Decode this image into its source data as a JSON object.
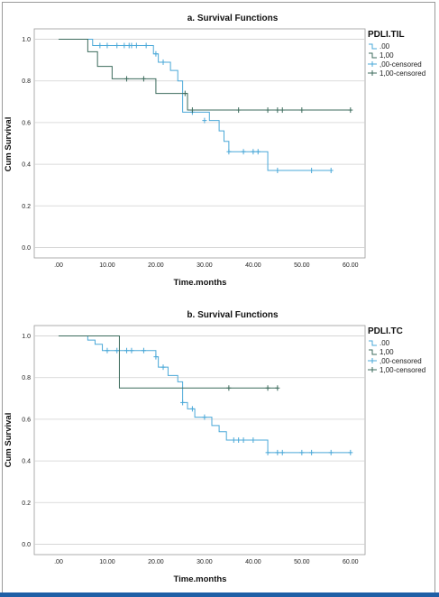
{
  "colors": {
    "group0": "#4aa8d8",
    "group1": "#3c6b5c",
    "grid": "#d0d0d0",
    "frame": "#9a9a9a"
  },
  "chart_data": [
    {
      "type": "line",
      "subtype": "kaplan-meier",
      "title": "a. Survival Functions",
      "xlabel": "Time.months",
      "ylabel": "Cum Survival",
      "xlim": [
        -5,
        63
      ],
      "ylim": [
        -0.05,
        1.05
      ],
      "x_ticks": [
        0,
        10,
        20,
        30,
        40,
        50,
        60
      ],
      "x_tick_labels": [
        ".00",
        "10.00",
        "20.00",
        "30.00",
        "40.00",
        "50.00",
        "60.00"
      ],
      "y_ticks": [
        0,
        0.2,
        0.4,
        0.6,
        0.8,
        1.0
      ],
      "y_tick_labels": [
        "0.0",
        "0.2",
        "0.4",
        "0.6",
        "0.8",
        "1.0"
      ],
      "grid": "horizontal",
      "legend_title": "PDLI.TIL",
      "legend_entries": [
        ".00",
        "1,00",
        ",00-censored",
        "1,00-censored"
      ],
      "series": [
        {
          "name": ".00",
          "color_key": "group0",
          "steps": [
            [
              0,
              1.0
            ],
            [
              7,
              0.97
            ],
            [
              18,
              0.97
            ],
            [
              19.5,
              0.93
            ],
            [
              20.5,
              0.89
            ],
            [
              23,
              0.85
            ],
            [
              24.5,
              0.8
            ],
            [
              25.5,
              0.65
            ],
            [
              29,
              0.65
            ],
            [
              31,
              0.61
            ],
            [
              33,
              0.56
            ],
            [
              34,
              0.51
            ],
            [
              35,
              0.46
            ],
            [
              42.5,
              0.46
            ],
            [
              43,
              0.37
            ],
            [
              56,
              0.37
            ]
          ],
          "censored": [
            [
              8.5,
              0.97
            ],
            [
              10,
              0.97
            ],
            [
              12,
              0.97
            ],
            [
              13.5,
              0.97
            ],
            [
              14.5,
              0.97
            ],
            [
              15,
              0.97
            ],
            [
              16,
              0.97
            ],
            [
              18,
              0.97
            ],
            [
              20,
              0.93
            ],
            [
              21.5,
              0.89
            ],
            [
              27.5,
              0.65
            ],
            [
              30,
              0.61
            ],
            [
              35,
              0.46
            ],
            [
              38,
              0.46
            ],
            [
              40,
              0.46
            ],
            [
              41,
              0.46
            ],
            [
              45,
              0.37
            ],
            [
              52,
              0.37
            ],
            [
              56,
              0.37
            ]
          ]
        },
        {
          "name": "1,00",
          "color_key": "group1",
          "steps": [
            [
              0,
              1.0
            ],
            [
              6,
              0.94
            ],
            [
              8,
              0.87
            ],
            [
              11,
              0.81
            ],
            [
              20,
              0.74
            ],
            [
              26.5,
              0.66
            ],
            [
              60,
              0.66
            ]
          ],
          "censored": [
            [
              14,
              0.81
            ],
            [
              17.5,
              0.81
            ],
            [
              26,
              0.74
            ],
            [
              27.5,
              0.66
            ],
            [
              37,
              0.66
            ],
            [
              43,
              0.66
            ],
            [
              45,
              0.66
            ],
            [
              46,
              0.66
            ],
            [
              50,
              0.66
            ],
            [
              60,
              0.66
            ]
          ]
        }
      ]
    },
    {
      "type": "line",
      "subtype": "kaplan-meier",
      "title": "b. Survival Functions",
      "xlabel": "Time.months",
      "ylabel": "Cum Survival",
      "xlim": [
        -5,
        63
      ],
      "ylim": [
        -0.05,
        1.05
      ],
      "x_ticks": [
        0,
        10,
        20,
        30,
        40,
        50,
        60
      ],
      "x_tick_labels": [
        ".00",
        "10.00",
        "20.00",
        "30.00",
        "40.00",
        "50.00",
        "60.00"
      ],
      "y_ticks": [
        0,
        0.2,
        0.4,
        0.6,
        0.8,
        1.0
      ],
      "y_tick_labels": [
        "0.0",
        "0.2",
        "0.4",
        "0.6",
        "0.8",
        "1.0"
      ],
      "grid": "horizontal",
      "legend_title": "PDLI.TC",
      "legend_entries": [
        ".00",
        "1,00",
        ",00-censored",
        "1,00-censored"
      ],
      "series": [
        {
          "name": ".00",
          "color_key": "group0",
          "steps": [
            [
              0,
              1.0
            ],
            [
              6,
              0.98
            ],
            [
              7.5,
              0.96
            ],
            [
              9,
              0.93
            ],
            [
              20,
              0.9
            ],
            [
              20.5,
              0.85
            ],
            [
              22.5,
              0.81
            ],
            [
              24.5,
              0.78
            ],
            [
              25.5,
              0.68
            ],
            [
              26.5,
              0.65
            ],
            [
              28,
              0.61
            ],
            [
              30,
              0.61
            ],
            [
              31.5,
              0.57
            ],
            [
              33,
              0.54
            ],
            [
              34.5,
              0.5
            ],
            [
              42.5,
              0.5
            ],
            [
              43,
              0.44
            ],
            [
              60,
              0.44
            ]
          ],
          "censored": [
            [
              10,
              0.93
            ],
            [
              12,
              0.93
            ],
            [
              14,
              0.93
            ],
            [
              15,
              0.93
            ],
            [
              17.5,
              0.93
            ],
            [
              20,
              0.9
            ],
            [
              21.5,
              0.85
            ],
            [
              25.5,
              0.68
            ],
            [
              27.5,
              0.65
            ],
            [
              30,
              0.61
            ],
            [
              36,
              0.5
            ],
            [
              37,
              0.5
            ],
            [
              38,
              0.5
            ],
            [
              40,
              0.5
            ],
            [
              43,
              0.44
            ],
            [
              45,
              0.44
            ],
            [
              46,
              0.44
            ],
            [
              50,
              0.44
            ],
            [
              52,
              0.44
            ],
            [
              56,
              0.44
            ],
            [
              60,
              0.44
            ]
          ]
        },
        {
          "name": "1,00",
          "color_key": "group1",
          "steps": [
            [
              0,
              1.0
            ],
            [
              12,
              1.0
            ],
            [
              12.5,
              0.75
            ],
            [
              45,
              0.75
            ]
          ],
          "censored": [
            [
              35,
              0.75
            ],
            [
              43,
              0.75
            ],
            [
              45,
              0.75
            ]
          ]
        }
      ]
    }
  ]
}
